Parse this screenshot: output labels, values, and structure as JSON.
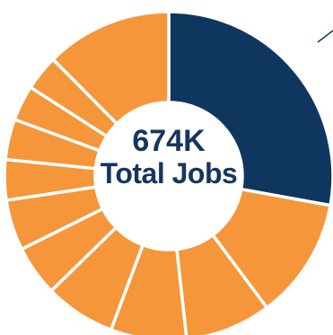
{
  "chart_data": {
    "type": "pie",
    "center_value": "674K",
    "center_caption": "Total Jobs",
    "values": [
      28,
      12,
      8.5,
      7.5,
      7,
      5,
      5,
      4,
      4,
      3.5,
      3.5,
      12.5
    ],
    "colors": {
      "highlight": "#0f365e",
      "slice": "#f6963b",
      "separator": "#ffffff",
      "center_text": "#16355f",
      "pointer": "#16355f"
    },
    "highlight_index": 0
  }
}
